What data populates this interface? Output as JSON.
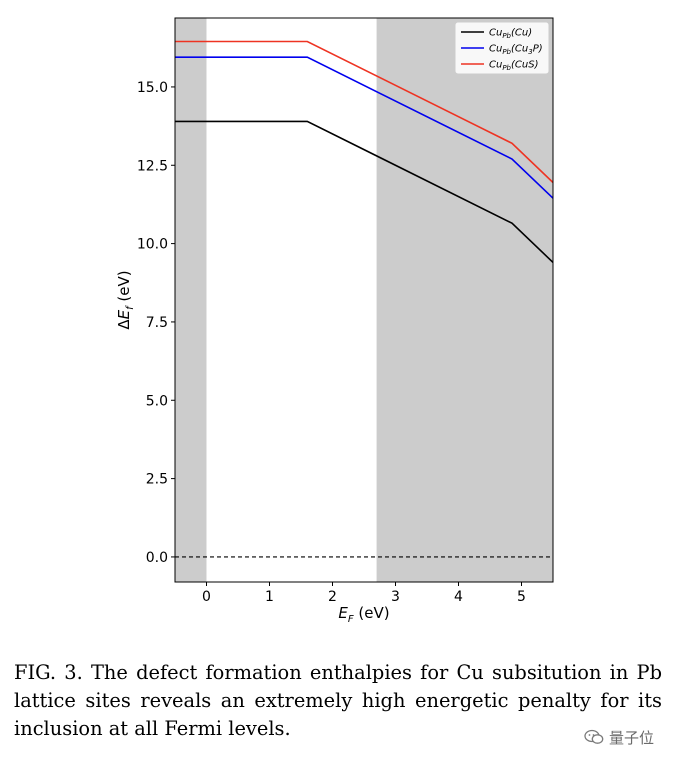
{
  "chart_data": {
    "type": "line",
    "title": "",
    "xlabel": "E_F (eV)",
    "ylabel": "ΔE_f (eV)",
    "xlim": [
      -0.5,
      5.5
    ],
    "ylim": [
      -0.8,
      17.2
    ],
    "x_ticks": [
      0,
      1,
      2,
      3,
      4,
      5
    ],
    "x_tick_labels": [
      "0",
      "1",
      "2",
      "3",
      "4",
      "5"
    ],
    "y_ticks": [
      0.0,
      2.5,
      5.0,
      7.5,
      10.0,
      12.5,
      15.0
    ],
    "y_tick_labels": [
      "0.0",
      "2.5",
      "5.0",
      "7.5",
      "10.0",
      "12.5",
      "15.0"
    ],
    "grid": false,
    "legend_position": "top-right",
    "shaded_regions": [
      {
        "x": [
          -0.5,
          0.0
        ],
        "color": "#cccccc"
      },
      {
        "x": [
          2.7,
          5.5
        ],
        "color": "#cccccc"
      }
    ],
    "reference_line": {
      "y": 0.0,
      "style": "dashed",
      "color": "#000000"
    },
    "series": [
      {
        "name": "Cu_Pb(Cu)",
        "color": "#000000",
        "x": [
          -0.5,
          1.6,
          4.85,
          5.5
        ],
        "y": [
          13.9,
          13.9,
          10.65,
          9.4
        ]
      },
      {
        "name": "Cu_Pb(Cu_3P)",
        "color": "#0000ee",
        "x": [
          -0.5,
          1.6,
          4.85,
          5.5
        ],
        "y": [
          15.95,
          15.95,
          12.7,
          11.45
        ]
      },
      {
        "name": "Cu_Pb(CuS)",
        "color": "#ee3322",
        "x": [
          -0.5,
          1.6,
          4.85,
          5.5
        ],
        "y": [
          16.45,
          16.45,
          13.2,
          11.95
        ]
      }
    ],
    "legend": [
      {
        "base": "Cu",
        "sub": "Pb",
        "paren_pre": "(Cu",
        "paren_sub": "",
        "paren_post": ")",
        "color": "#000000"
      },
      {
        "base": "Cu",
        "sub": "Pb",
        "paren_pre": "(Cu",
        "paren_sub": "3",
        "paren_post": "P)",
        "color": "#0000ee"
      },
      {
        "base": "Cu",
        "sub": "Pb",
        "paren_pre": "(CuS",
        "paren_sub": "",
        "paren_post": ")",
        "color": "#ee3322"
      }
    ]
  },
  "caption": "FIG. 3.  The defect formation enthalpies for Cu subsitution in Pb lattice sites reveals an extremely high energetic penalty for its inclusion at all Fermi levels.",
  "watermark": {
    "text": "量子位",
    "icon": "wechat-icon"
  }
}
